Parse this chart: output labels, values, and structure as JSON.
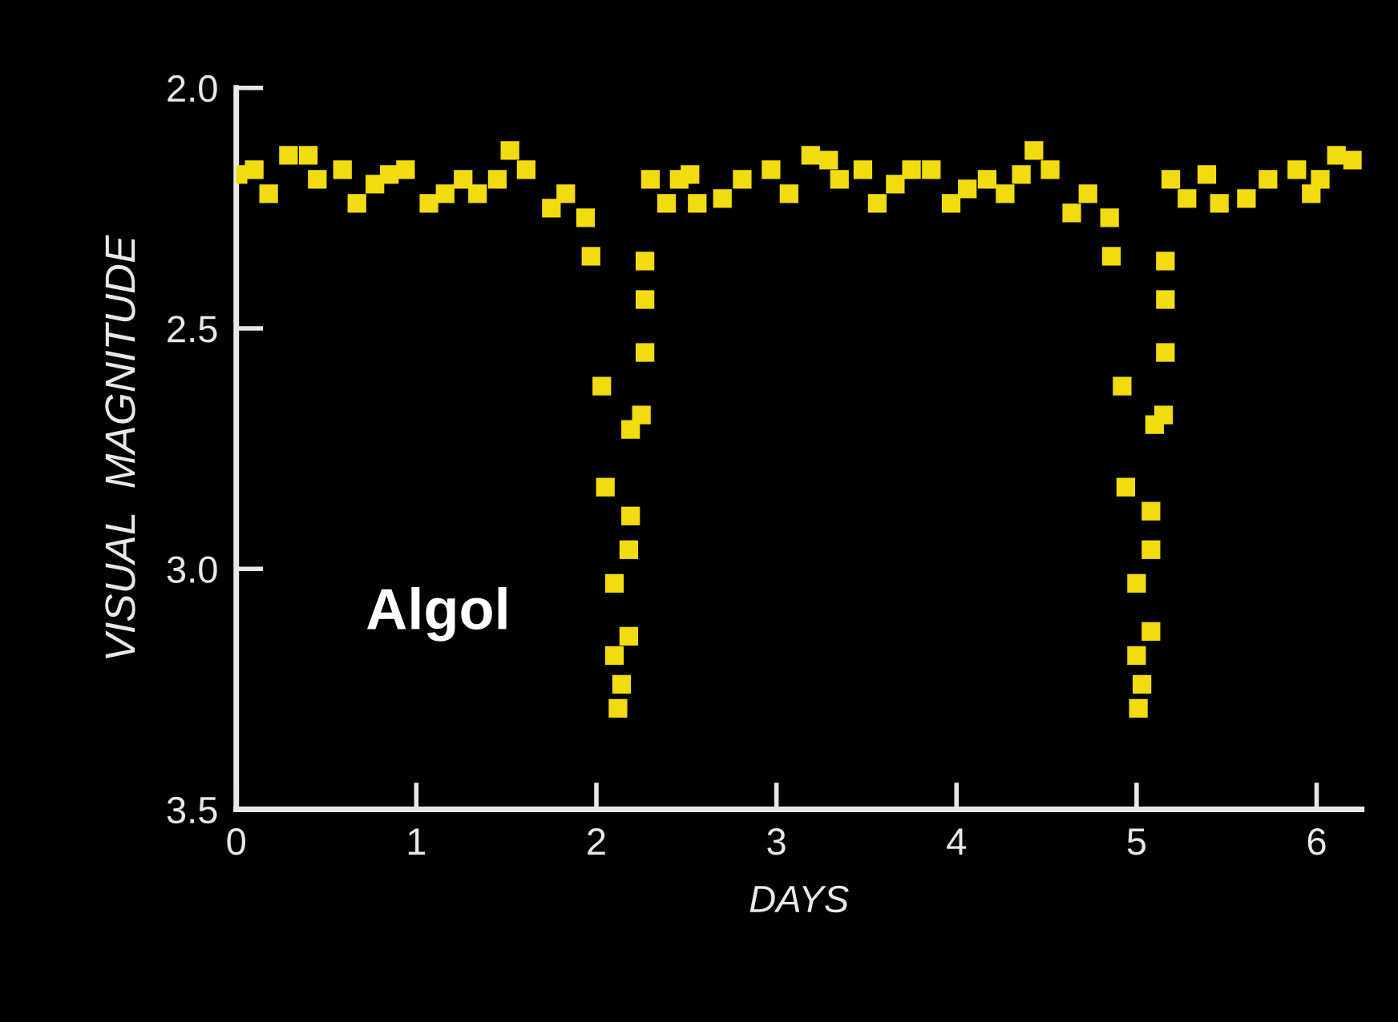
{
  "chart_data": {
    "type": "scatter",
    "xlabel": "DAYS",
    "ylabel": "VISUAL  MAGNITUDE",
    "annotations": [
      "Algol"
    ],
    "marker": "square",
    "grid": false,
    "legend": false,
    "xlim": [
      0,
      6.25
    ],
    "xticks": [
      0,
      1,
      2,
      3,
      4,
      5,
      6
    ],
    "ylim": [
      3.5,
      2.0
    ],
    "yticks": [
      {
        "value": 2,
        "label": "2.0"
      },
      {
        "value": 2.5,
        "label": "2.5"
      },
      {
        "value": 3,
        "label": "3.0"
      },
      {
        "value": 3.5,
        "label": "3.5"
      }
    ],
    "series": [
      {
        "color": "#f0dc10",
        "x": [
          0.01,
          0.1,
          0.18,
          0.29,
          0.4,
          0.45,
          0.59,
          0.67,
          0.77,
          0.85,
          0.94,
          1.07,
          1.16,
          1.26,
          1.34,
          1.45,
          1.52,
          1.61,
          1.75,
          1.83,
          1.94,
          1.97,
          2.03,
          2.05,
          2.1,
          2.18,
          2.1,
          2.14,
          2.12,
          2.19,
          2.18,
          2.25,
          2.19,
          2.27,
          2.27,
          2.27,
          2.3,
          2.39,
          2.46,
          2.52,
          2.56,
          2.7,
          2.81,
          2.97,
          3.07,
          3.19,
          3.29,
          3.35,
          3.48,
          3.56,
          3.66,
          3.75,
          3.86,
          3.97,
          4.06,
          4.17,
          4.27,
          4.36,
          4.43,
          4.52,
          4.64,
          4.73,
          4.85,
          4.86,
          4.92,
          4.94,
          5.08,
          5.08,
          5.0,
          5.08,
          5.0,
          5.03,
          5.01,
          5.15,
          5.1,
          5.16,
          5.16,
          5.16,
          5.19,
          5.28,
          5.39,
          5.46,
          5.61,
          5.73,
          5.89,
          5.97,
          6.02,
          6.11,
          6.2
        ],
        "values": [
          2.18,
          2.17,
          2.22,
          2.14,
          2.14,
          2.19,
          2.17,
          2.24,
          2.2,
          2.18,
          2.17,
          2.24,
          2.22,
          2.19,
          2.22,
          2.19,
          2.13,
          2.17,
          2.25,
          2.22,
          2.27,
          2.35,
          2.62,
          2.83,
          3.03,
          3.14,
          3.18,
          3.24,
          3.29,
          2.89,
          2.96,
          2.68,
          2.71,
          2.55,
          2.44,
          2.36,
          2.19,
          2.24,
          2.19,
          2.18,
          2.24,
          2.23,
          2.19,
          2.17,
          2.22,
          2.14,
          2.15,
          2.19,
          2.17,
          2.24,
          2.2,
          2.17,
          2.17,
          2.24,
          2.21,
          2.19,
          2.22,
          2.18,
          2.13,
          2.17,
          2.26,
          2.22,
          2.27,
          2.35,
          2.62,
          2.83,
          2.88,
          2.96,
          3.03,
          3.13,
          3.18,
          3.24,
          3.29,
          2.68,
          2.7,
          2.55,
          2.44,
          2.36,
          2.19,
          2.23,
          2.18,
          2.24,
          2.23,
          2.19,
          2.17,
          2.22,
          2.19,
          2.14,
          2.15
        ]
      }
    ]
  }
}
